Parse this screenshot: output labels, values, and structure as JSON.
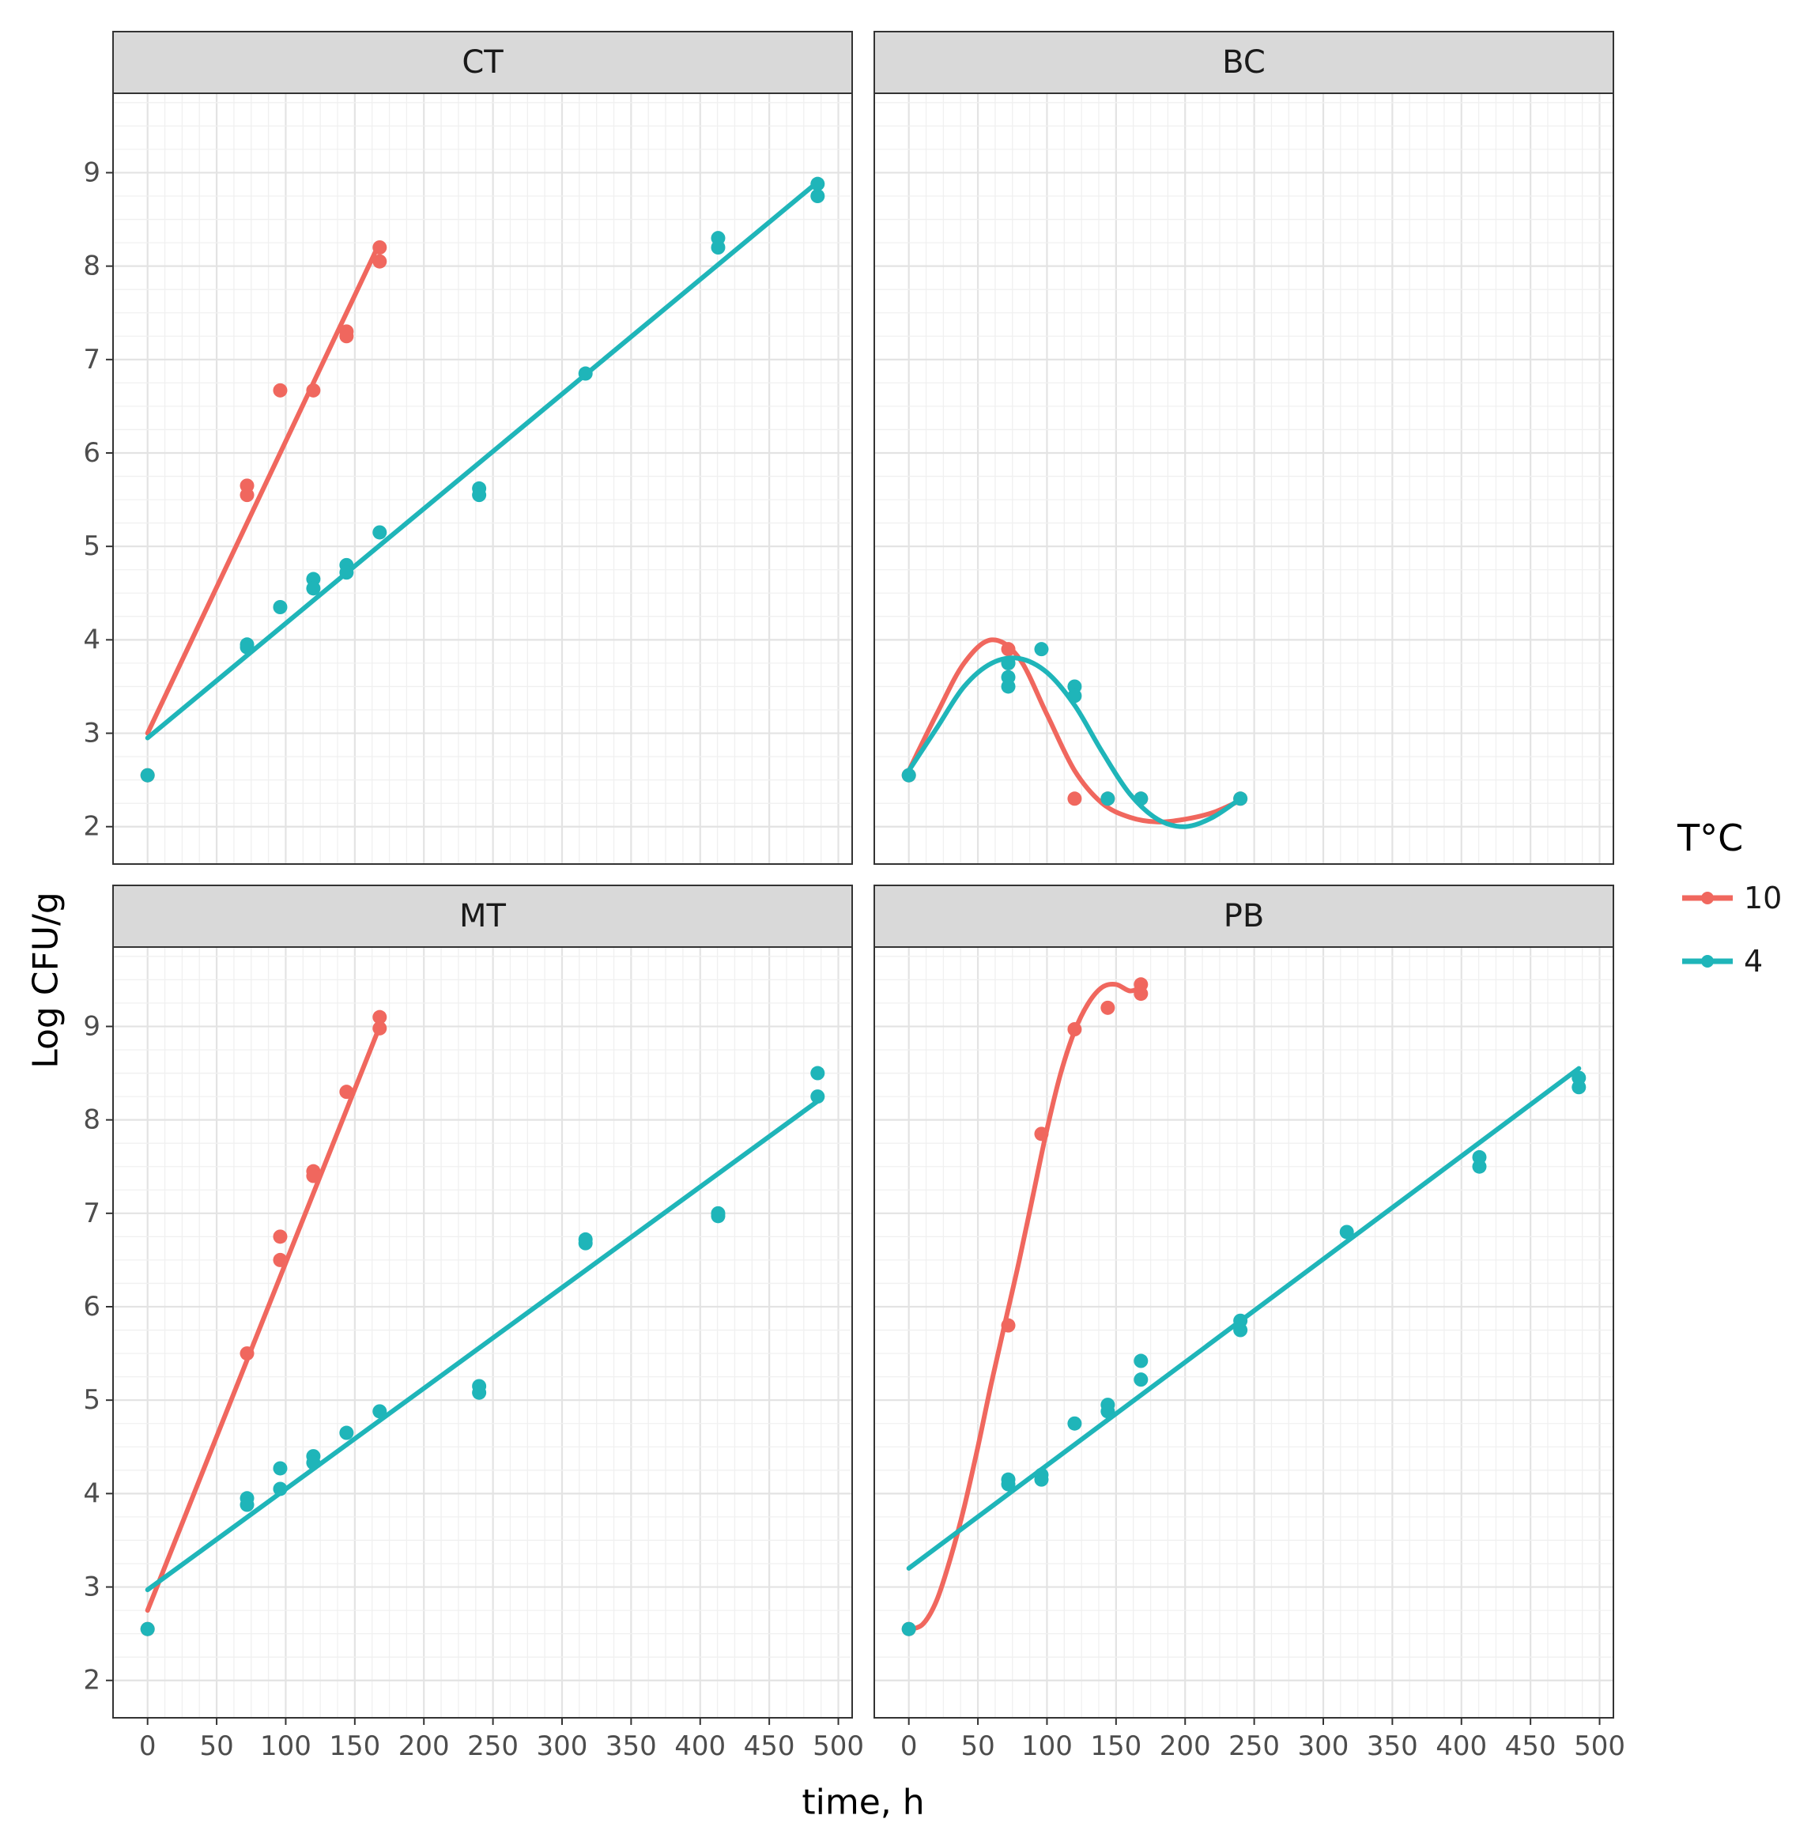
{
  "chart_data": {
    "type": "scatter",
    "xlabel": "time, h",
    "ylabel": "Log CFU/g",
    "xlim": [
      -25,
      510
    ],
    "ylim": [
      1.6,
      9.85
    ],
    "xticks": [
      0,
      50,
      100,
      150,
      200,
      250,
      300,
      350,
      400,
      450,
      500
    ],
    "yticks": [
      2,
      3,
      4,
      5,
      6,
      7,
      8,
      9
    ],
    "grid": true,
    "legend": {
      "title": "T°C",
      "position": "right",
      "entries": [
        {
          "label": "10",
          "color": "#F0675E"
        },
        {
          "label": "4",
          "color": "#1FB5B9"
        }
      ]
    },
    "panels": [
      {
        "title": "CT",
        "series": [
          {
            "name": "10",
            "color": "#F0675E",
            "fit": "line",
            "points": [
              [
                0,
                2.55
              ],
              [
                72,
                5.65
              ],
              [
                72,
                5.55
              ],
              [
                96,
                6.67
              ],
              [
                120,
                6.67
              ],
              [
                144,
                7.3
              ],
              [
                144,
                7.25
              ],
              [
                168,
                8.2
              ],
              [
                168,
                8.05
              ]
            ],
            "curve": [
              [
                0,
                3.0
              ],
              [
                168,
                8.25
              ]
            ]
          },
          {
            "name": "4",
            "color": "#1FB5B9",
            "fit": "line",
            "points": [
              [
                0,
                2.55
              ],
              [
                72,
                3.95
              ],
              [
                72,
                3.92
              ],
              [
                96,
                4.35
              ],
              [
                120,
                4.65
              ],
              [
                120,
                4.55
              ],
              [
                144,
                4.8
              ],
              [
                144,
                4.72
              ],
              [
                168,
                5.15
              ],
              [
                240,
                5.62
              ],
              [
                240,
                5.55
              ],
              [
                317,
                6.85
              ],
              [
                413,
                8.3
              ],
              [
                413,
                8.2
              ],
              [
                485,
                8.88
              ],
              [
                485,
                8.75
              ]
            ],
            "curve": [
              [
                0,
                2.95
              ],
              [
                485,
                8.9
              ]
            ]
          }
        ]
      },
      {
        "title": "BC",
        "series": [
          {
            "name": "10",
            "color": "#F0675E",
            "fit": "curve",
            "points": [
              [
                0,
                2.55
              ],
              [
                72,
                3.9
              ],
              [
                72,
                3.75
              ],
              [
                120,
                2.3
              ],
              [
                144,
                2.3
              ],
              [
                168,
                2.3
              ],
              [
                240,
                2.3
              ]
            ],
            "curve": [
              [
                0,
                2.6
              ],
              [
                20,
                3.2
              ],
              [
                40,
                3.75
              ],
              [
                60,
                4.0
              ],
              [
                80,
                3.8
              ],
              [
                100,
                3.2
              ],
              [
                120,
                2.6
              ],
              [
                140,
                2.25
              ],
              [
                160,
                2.1
              ],
              [
                180,
                2.05
              ],
              [
                200,
                2.08
              ],
              [
                220,
                2.15
              ],
              [
                240,
                2.28
              ]
            ]
          },
          {
            "name": "4",
            "color": "#1FB5B9",
            "fit": "curve",
            "points": [
              [
                0,
                2.55
              ],
              [
                72,
                3.75
              ],
              [
                72,
                3.6
              ],
              [
                72,
                3.5
              ],
              [
                96,
                3.9
              ],
              [
                120,
                3.5
              ],
              [
                120,
                3.4
              ],
              [
                144,
                2.3
              ],
              [
                168,
                2.3
              ],
              [
                240,
                2.3
              ]
            ],
            "curve": [
              [
                0,
                2.6
              ],
              [
                20,
                3.05
              ],
              [
                40,
                3.5
              ],
              [
                60,
                3.75
              ],
              [
                80,
                3.8
              ],
              [
                100,
                3.65
              ],
              [
                120,
                3.3
              ],
              [
                140,
                2.8
              ],
              [
                160,
                2.35
              ],
              [
                180,
                2.08
              ],
              [
                200,
                2.0
              ],
              [
                220,
                2.1
              ],
              [
                240,
                2.3
              ]
            ]
          }
        ]
      },
      {
        "title": "MT",
        "series": [
          {
            "name": "10",
            "color": "#F0675E",
            "fit": "line",
            "points": [
              [
                0,
                2.55
              ],
              [
                72,
                5.5
              ],
              [
                96,
                6.75
              ],
              [
                96,
                6.5
              ],
              [
                120,
                7.45
              ],
              [
                120,
                7.4
              ],
              [
                144,
                8.3
              ],
              [
                168,
                9.1
              ],
              [
                168,
                8.98
              ]
            ],
            "curve": [
              [
                0,
                2.75
              ],
              [
                168,
                9.0
              ]
            ]
          },
          {
            "name": "4",
            "color": "#1FB5B9",
            "fit": "line",
            "points": [
              [
                0,
                2.55
              ],
              [
                72,
                3.95
              ],
              [
                72,
                3.88
              ],
              [
                96,
                4.27
              ],
              [
                96,
                4.05
              ],
              [
                120,
                4.4
              ],
              [
                120,
                4.33
              ],
              [
                144,
                4.65
              ],
              [
                168,
                4.88
              ],
              [
                240,
                5.15
              ],
              [
                240,
                5.08
              ],
              [
                317,
                6.72
              ],
              [
                317,
                6.68
              ],
              [
                413,
                7.0
              ],
              [
                413,
                6.97
              ],
              [
                485,
                8.5
              ],
              [
                485,
                8.25
              ]
            ],
            "curve": [
              [
                0,
                2.97
              ],
              [
                485,
                8.2
              ]
            ]
          }
        ]
      },
      {
        "title": "PB",
        "series": [
          {
            "name": "10",
            "color": "#F0675E",
            "fit": "curve",
            "points": [
              [
                0,
                2.55
              ],
              [
                72,
                5.8
              ],
              [
                96,
                7.85
              ],
              [
                120,
                8.97
              ],
              [
                144,
                9.2
              ],
              [
                168,
                9.45
              ],
              [
                168,
                9.35
              ]
            ],
            "curve": [
              [
                0,
                2.55
              ],
              [
                10,
                2.6
              ],
              [
                20,
                2.85
              ],
              [
                30,
                3.3
              ],
              [
                40,
                3.85
              ],
              [
                50,
                4.5
              ],
              [
                60,
                5.2
              ],
              [
                70,
                5.85
              ],
              [
                80,
                6.5
              ],
              [
                90,
                7.2
              ],
              [
                100,
                7.9
              ],
              [
                110,
                8.5
              ],
              [
                120,
                8.95
              ],
              [
                130,
                9.25
              ],
              [
                140,
                9.42
              ],
              [
                150,
                9.45
              ],
              [
                160,
                9.38
              ],
              [
                168,
                9.42
              ]
            ]
          },
          {
            "name": "4",
            "color": "#1FB5B9",
            "fit": "line",
            "points": [
              [
                0,
                2.55
              ],
              [
                72,
                4.15
              ],
              [
                72,
                4.1
              ],
              [
                96,
                4.2
              ],
              [
                96,
                4.15
              ],
              [
                120,
                4.75
              ],
              [
                144,
                4.95
              ],
              [
                144,
                4.88
              ],
              [
                168,
                5.42
              ],
              [
                168,
                5.22
              ],
              [
                240,
                5.85
              ],
              [
                240,
                5.75
              ],
              [
                317,
                6.8
              ],
              [
                413,
                7.6
              ],
              [
                413,
                7.5
              ],
              [
                485,
                8.45
              ],
              [
                485,
                8.35
              ]
            ],
            "curve": [
              [
                0,
                3.2
              ],
              [
                485,
                8.55
              ]
            ]
          }
        ]
      }
    ]
  }
}
